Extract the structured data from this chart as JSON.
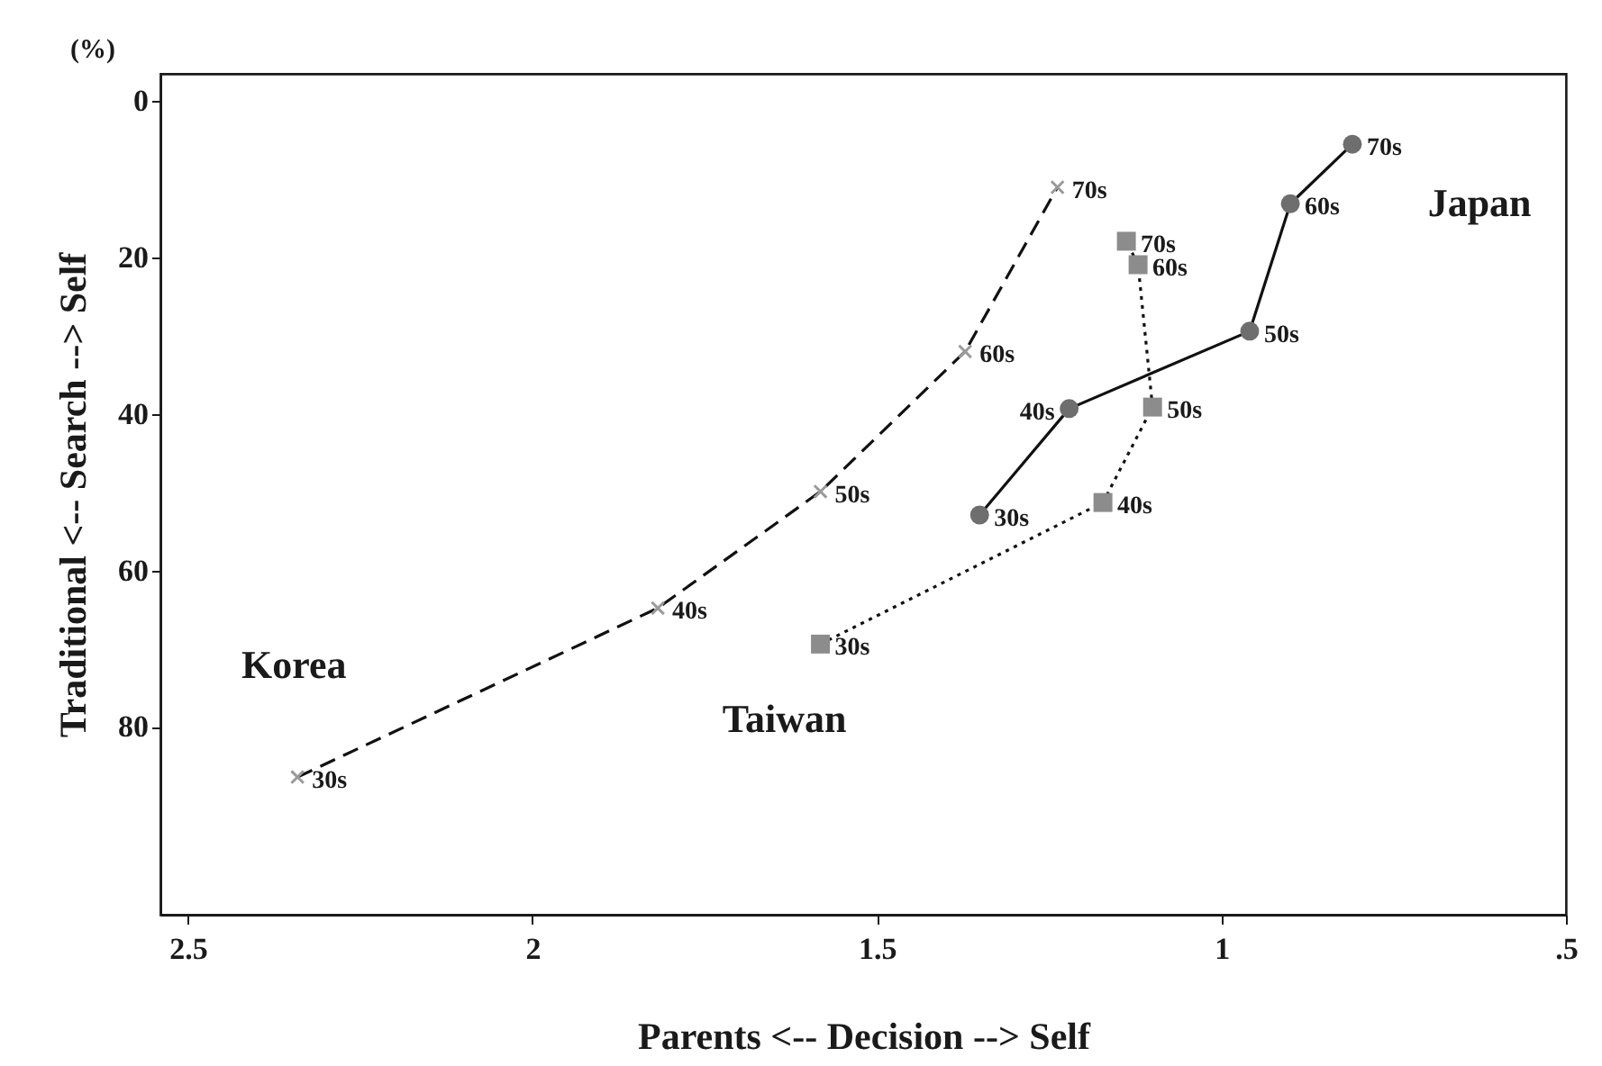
{
  "chart_data": {
    "type": "line",
    "xlabel": "Parents <-- Decision --> Self",
    "ylabel": "Traditional <-- Search --> Self",
    "xlim": [
      2.54,
      0.5
    ],
    "xticks": [
      2.5,
      2,
      1.5,
      1,
      {
        "value": 0.5,
        "label": ".5"
      }
    ],
    "ylim": [
      104,
      -3.5
    ],
    "yticks": [
      0,
      20,
      40,
      60,
      80
    ],
    "grid": false,
    "series": [
      {
        "name": "Korea",
        "color": "#9a9a9a",
        "marker": "cross",
        "line_style": "dashed",
        "x": [
          2.341,
          1.818,
          1.582,
          1.372,
          1.238
        ],
        "values": [
          86.4,
          64.8,
          49.9,
          32.0,
          11.0
        ]
      },
      {
        "name": "Japan",
        "color": "#6e6e6e",
        "marker": "circle",
        "line_style": "solid",
        "x": [
          1.351,
          1.221,
          0.959,
          0.9,
          0.81
        ],
        "values": [
          52.9,
          39.3,
          29.4,
          13.1,
          5.5
        ]
      },
      {
        "name": "Taiwan",
        "color": "#8c8c8c",
        "marker": "square",
        "line_style": "dotted",
        "x": [
          1.582,
          1.172,
          1.1,
          1.121,
          1.138
        ],
        "values": [
          69.4,
          51.3,
          39.1,
          20.9,
          17.9
        ]
      }
    ],
    "annotations": [
      "(%)",
      {
        "text": "30s",
        "x": 2.341,
        "y": 86.4
      },
      {
        "text": "40s",
        "x": 1.818,
        "y": 64.8
      },
      {
        "text": "50s",
        "x": 1.582,
        "y": 49.9
      },
      {
        "text": "60s",
        "x": 1.372,
        "y": 32.0
      },
      {
        "text": "70s",
        "x": 1.238,
        "y": 11.0
      },
      {
        "text": "30s",
        "x": 1.351,
        "y": 52.9
      },
      {
        "text": "40s",
        "x": 1.221,
        "y": 39.3
      },
      {
        "text": "50s",
        "x": 0.959,
        "y": 29.4
      },
      {
        "text": "60s",
        "x": 0.9,
        "y": 13.1
      },
      {
        "text": "70s",
        "x": 0.81,
        "y": 5.5
      },
      {
        "text": "30s",
        "x": 1.582,
        "y": 69.4
      },
      {
        "text": "40s",
        "x": 1.172,
        "y": 51.3
      },
      {
        "text": "50s",
        "x": 1.1,
        "y": 39.1
      },
      {
        "text": "60s",
        "x": 1.121,
        "y": 20.9
      },
      {
        "text": "70s",
        "x": 1.138,
        "y": 17.9
      }
    ]
  }
}
